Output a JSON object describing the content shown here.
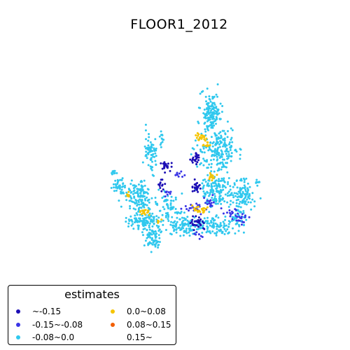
{
  "title": "FLOOR1_2012",
  "legend": {
    "title": "estimates",
    "entries": [
      {
        "label": "~-0.15",
        "color": "#1d0fb5"
      },
      {
        "label": "-0.15~-0.08",
        "color": "#3a35e6"
      },
      {
        "label": "-0.08~0.0",
        "color": "#30c8ee"
      },
      {
        "label": "0.0~0.08",
        "color": "#f5c400"
      },
      {
        "label": "0.08~0.15",
        "color": "#f25f00"
      },
      {
        "label": "0.15~",
        "color": "#ffffff"
      }
    ]
  },
  "chart_data": {
    "type": "scatter",
    "title": "FLOOR1_2012",
    "legend_title": "estimates",
    "legend_position": "bottom-left",
    "axes_visible": false,
    "classes": [
      "~-0.15",
      "-0.15~-0.08",
      "-0.08~0.0",
      "0.0~0.08",
      "0.08~0.15",
      "0.15~"
    ],
    "clusters": [
      {
        "class": 2,
        "cx": 0.315,
        "cy": 0.585,
        "rx": 0.055,
        "ry": 0.075,
        "n": 130
      },
      {
        "class": 2,
        "cx": 0.23,
        "cy": 0.54,
        "rx": 0.03,
        "ry": 0.04,
        "n": 40
      },
      {
        "class": 2,
        "cx": 0.365,
        "cy": 0.385,
        "rx": 0.025,
        "ry": 0.08,
        "n": 70
      },
      {
        "class": 2,
        "cx": 0.34,
        "cy": 0.7,
        "rx": 0.06,
        "ry": 0.035,
        "n": 110
      },
      {
        "class": 2,
        "cx": 0.37,
        "cy": 0.77,
        "rx": 0.04,
        "ry": 0.05,
        "n": 70
      },
      {
        "class": 2,
        "cx": 0.45,
        "cy": 0.63,
        "rx": 0.05,
        "ry": 0.05,
        "n": 60
      },
      {
        "class": 2,
        "cx": 0.51,
        "cy": 0.72,
        "rx": 0.06,
        "ry": 0.04,
        "n": 90
      },
      {
        "class": 2,
        "cx": 0.64,
        "cy": 0.72,
        "rx": 0.08,
        "ry": 0.04,
        "n": 110
      },
      {
        "class": 2,
        "cx": 0.625,
        "cy": 0.2,
        "rx": 0.04,
        "ry": 0.08,
        "n": 150
      },
      {
        "class": 2,
        "cx": 0.66,
        "cy": 0.38,
        "rx": 0.075,
        "ry": 0.095,
        "n": 200
      },
      {
        "class": 2,
        "cx": 0.645,
        "cy": 0.56,
        "rx": 0.06,
        "ry": 0.065,
        "n": 130
      },
      {
        "class": 2,
        "cx": 0.76,
        "cy": 0.58,
        "rx": 0.05,
        "ry": 0.06,
        "n": 110
      },
      {
        "class": 2,
        "cx": 0.75,
        "cy": 0.68,
        "rx": 0.03,
        "ry": 0.05,
        "n": 40
      },
      {
        "class": 2,
        "cx": 0.205,
        "cy": 0.47,
        "rx": 0.012,
        "ry": 0.012,
        "n": 12
      },
      {
        "class": 2,
        "cx": 0.41,
        "cy": 0.32,
        "rx": 0.01,
        "ry": 0.04,
        "n": 12
      },
      {
        "class": 2,
        "cx": 0.825,
        "cy": 0.52,
        "rx": 0.012,
        "ry": 0.012,
        "n": 8
      },
      {
        "class": 0,
        "cx": 0.43,
        "cy": 0.45,
        "rx": 0.02,
        "ry": 0.025,
        "n": 22
      },
      {
        "class": 0,
        "cx": 0.41,
        "cy": 0.53,
        "rx": 0.015,
        "ry": 0.025,
        "n": 12
      },
      {
        "class": 0,
        "cx": 0.56,
        "cy": 0.41,
        "rx": 0.02,
        "ry": 0.02,
        "n": 25
      },
      {
        "class": 0,
        "cx": 0.56,
        "cy": 0.54,
        "rx": 0.02,
        "ry": 0.025,
        "n": 25
      },
      {
        "class": 0,
        "cx": 0.57,
        "cy": 0.71,
        "rx": 0.03,
        "ry": 0.035,
        "n": 30
      },
      {
        "class": 1,
        "cx": 0.55,
        "cy": 0.64,
        "rx": 0.04,
        "ry": 0.03,
        "n": 22
      },
      {
        "class": 1,
        "cx": 0.62,
        "cy": 0.61,
        "rx": 0.025,
        "ry": 0.025,
        "n": 14
      },
      {
        "class": 1,
        "cx": 0.71,
        "cy": 0.66,
        "rx": 0.025,
        "ry": 0.02,
        "n": 14
      },
      {
        "class": 1,
        "cx": 0.765,
        "cy": 0.69,
        "rx": 0.03,
        "ry": 0.02,
        "n": 16
      },
      {
        "class": 1,
        "cx": 0.48,
        "cy": 0.49,
        "rx": 0.02,
        "ry": 0.03,
        "n": 10
      },
      {
        "class": 1,
        "cx": 0.44,
        "cy": 0.57,
        "rx": 0.015,
        "ry": 0.02,
        "n": 8
      },
      {
        "class": 1,
        "cx": 0.57,
        "cy": 0.76,
        "rx": 0.02,
        "ry": 0.015,
        "n": 8
      },
      {
        "class": 3,
        "cx": 0.585,
        "cy": 0.31,
        "rx": 0.03,
        "ry": 0.02,
        "n": 24
      },
      {
        "class": 3,
        "cx": 0.605,
        "cy": 0.35,
        "rx": 0.015,
        "ry": 0.015,
        "n": 10
      },
      {
        "class": 3,
        "cx": 0.635,
        "cy": 0.5,
        "rx": 0.02,
        "ry": 0.015,
        "n": 14
      },
      {
        "class": 3,
        "cx": 0.575,
        "cy": 0.645,
        "rx": 0.035,
        "ry": 0.015,
        "n": 22
      },
      {
        "class": 3,
        "cx": 0.34,
        "cy": 0.655,
        "rx": 0.02,
        "ry": 0.015,
        "n": 18
      },
      {
        "class": 3,
        "cx": 0.265,
        "cy": 0.585,
        "rx": 0.012,
        "ry": 0.015,
        "n": 8
      },
      {
        "class": 3,
        "cx": 0.405,
        "cy": 0.695,
        "rx": 0.01,
        "ry": 0.015,
        "n": 5
      }
    ]
  }
}
